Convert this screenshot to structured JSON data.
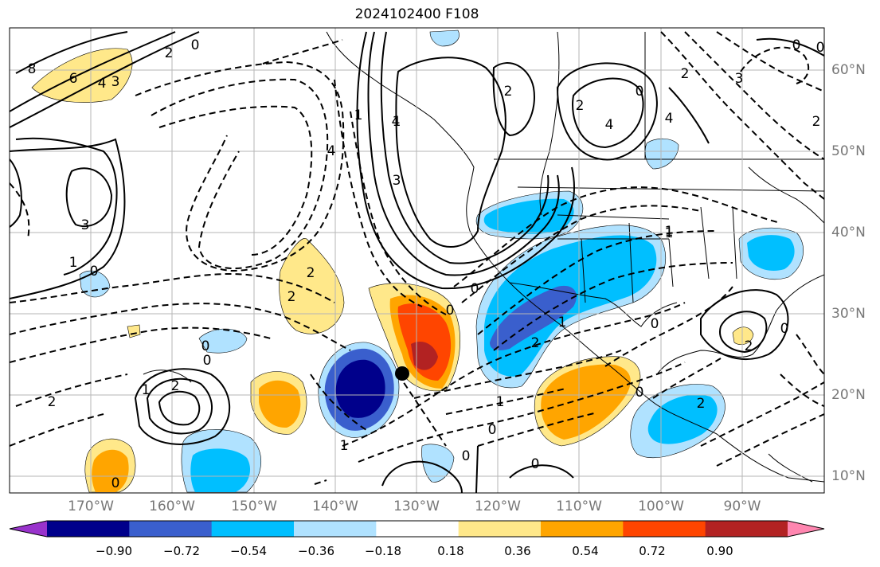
{
  "title": "2024102400 F108",
  "longitude_labels": [
    "170°W",
    "160°W",
    "150°W",
    "140°W",
    "130°W",
    "120°W",
    "110°W",
    "100°W",
    "90°W"
  ],
  "latitude_labels": [
    "60°N",
    "50°N",
    "40°N",
    "30°N",
    "20°N",
    "10°N"
  ],
  "colorbar": {
    "tick_labels": [
      "−0.90",
      "−0.72",
      "−0.54",
      "−0.36",
      "−0.18",
      "0.18",
      "0.36",
      "0.54",
      "0.72",
      "0.90"
    ],
    "colors": [
      "#9933cc",
      "#00008b",
      "#3a5fcd",
      "#00bfff",
      "#b0e2ff",
      "#ffffff",
      "#ffe88a",
      "#ffa500",
      "#ff4500",
      "#b22222",
      "#ff86b0"
    ]
  },
  "contour_labels": [
    "8",
    "6",
    "4",
    "3",
    "2",
    "0",
    "3",
    "1",
    "0",
    "2",
    "2",
    "2",
    "0",
    "1",
    "2",
    "0",
    "1",
    "0",
    "1",
    "0",
    "2",
    "1",
    "0",
    "1",
    "0",
    "2",
    "3",
    "4",
    "2",
    "4",
    "0",
    "2",
    "4",
    "3",
    "2",
    "0",
    "2",
    "0",
    "1",
    "0",
    "0",
    "0",
    "4",
    "1",
    "1",
    "0",
    "0",
    "2"
  ],
  "marker": "storm-center-dot"
}
